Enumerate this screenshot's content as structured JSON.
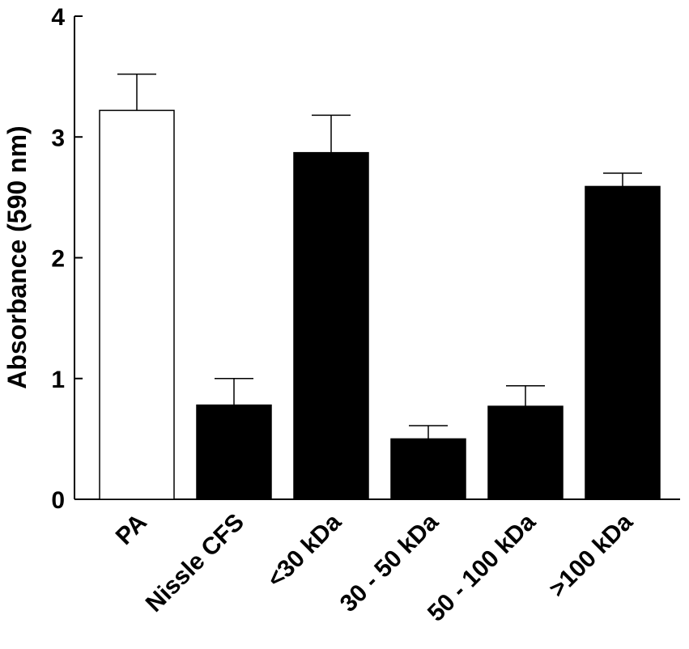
{
  "chart_data": {
    "type": "bar",
    "title": "",
    "xlabel": "",
    "ylabel": "Absorbance (590 nm)",
    "ylim": [
      0,
      4
    ],
    "yticks": [
      "0",
      "1",
      "2",
      "3",
      "4"
    ],
    "grid": false,
    "categories": [
      "PA",
      "Nissle CFS",
      "<30 kDa",
      "30 - 50 kDa",
      "50 - 100 kDa",
      ">100 kDa"
    ],
    "values": [
      3.22,
      0.78,
      2.87,
      0.5,
      0.77,
      2.59
    ],
    "errors": [
      0.3,
      0.22,
      0.31,
      0.11,
      0.17,
      0.11
    ],
    "fills": [
      "#ffffff",
      "#000000",
      "#000000",
      "#000000",
      "#000000",
      "#000000"
    ]
  }
}
